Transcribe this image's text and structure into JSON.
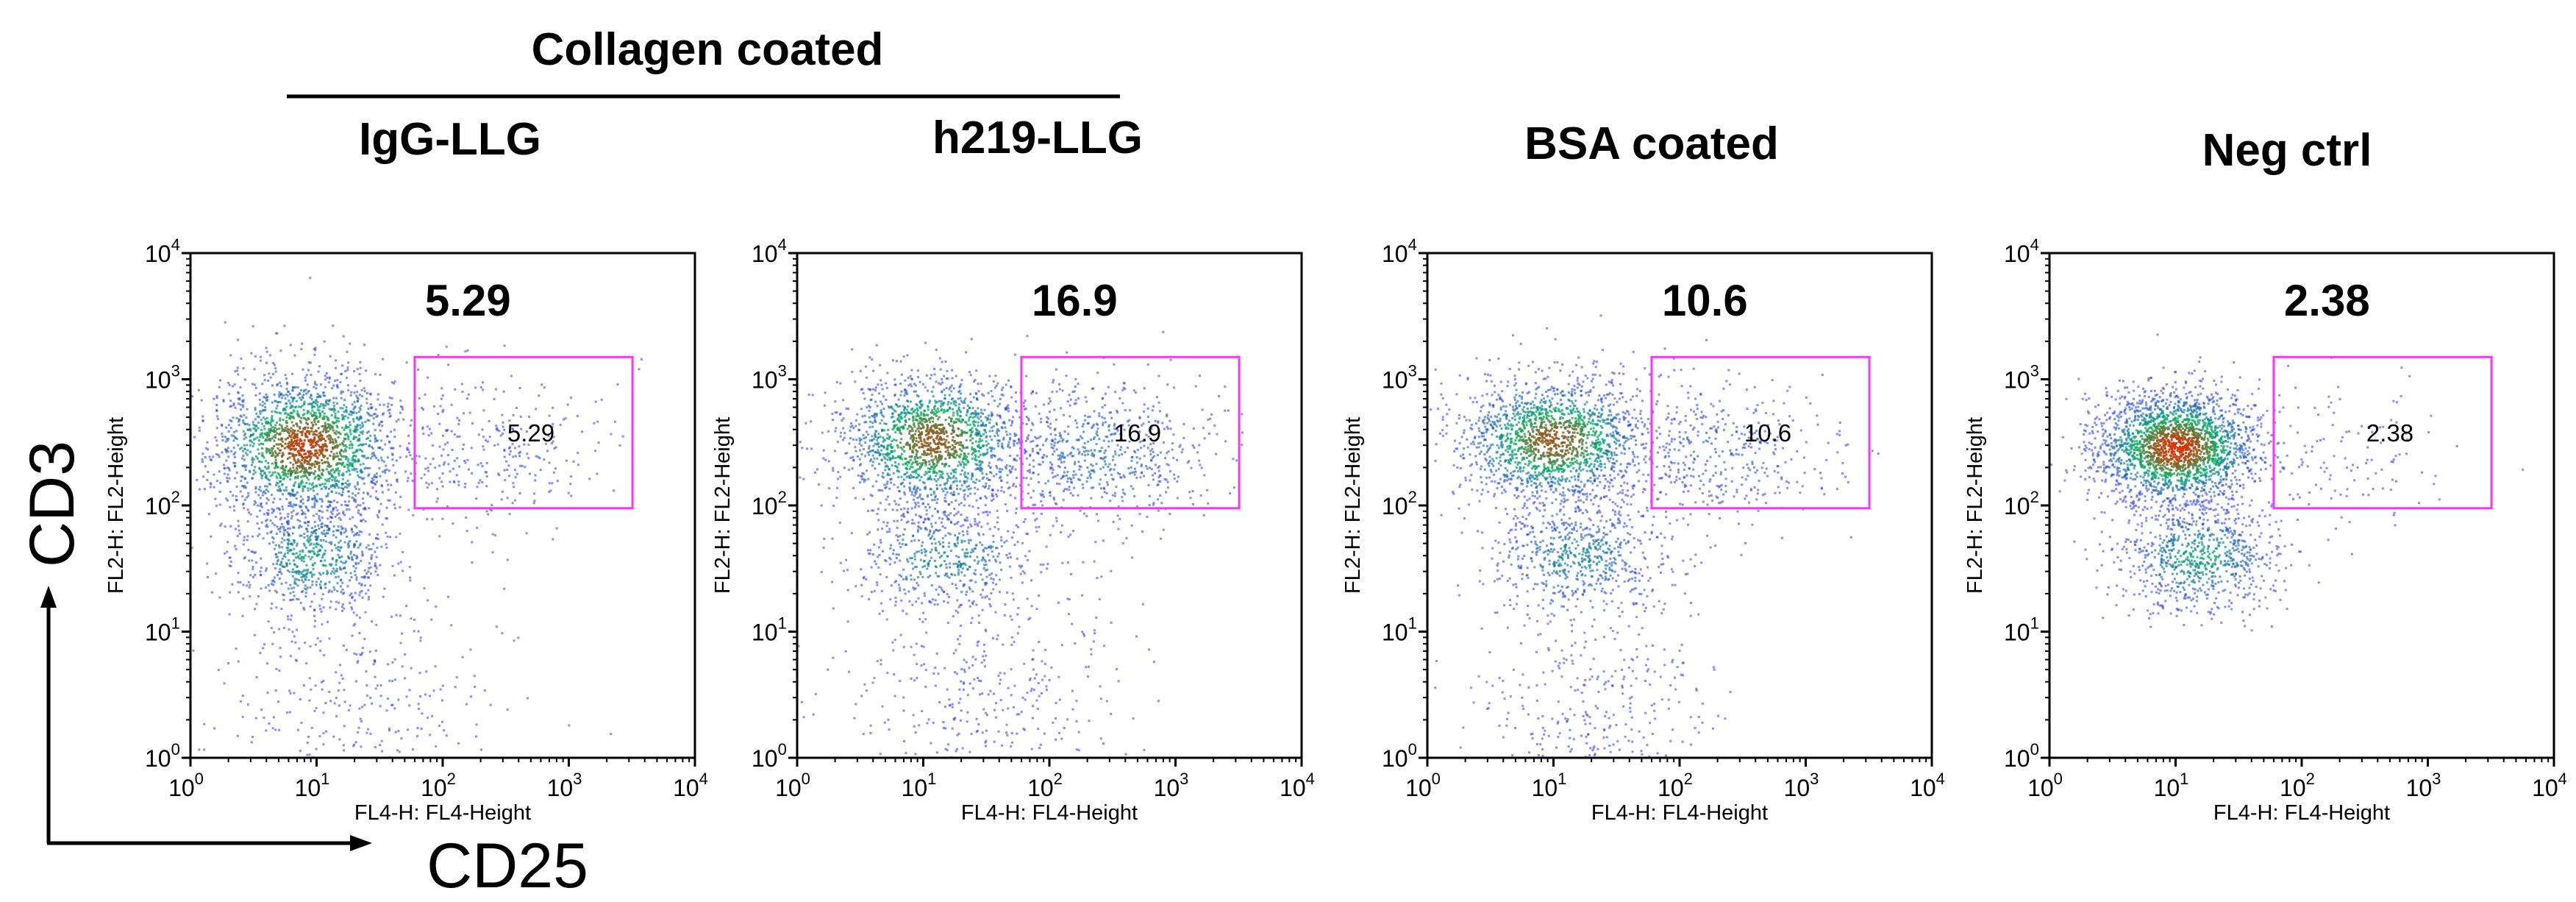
{
  "figure": {
    "group_label": "Collagen coated",
    "big_axis_y": "CD3",
    "big_axis_x": "CD25"
  },
  "colors": {
    "gate": "#ff33ff",
    "axis": "#000000",
    "density_low": "#2d2dff",
    "density_mid": "#00b060",
    "density_high": "#e03000"
  },
  "chart_data": [
    {
      "type": "scatter",
      "scale": "log",
      "title": "IgG-LLG",
      "headline_value": "5.29",
      "xlabel": "FL4-H: FL4-Height",
      "ylabel": "FL2-H: FL2-Height",
      "xlim": [
        1,
        10000
      ],
      "ylim": [
        1,
        10000
      ],
      "ticks": [
        {
          "base": "10",
          "exp": "0"
        },
        {
          "base": "10",
          "exp": "1"
        },
        {
          "base": "10",
          "exp": "2"
        },
        {
          "base": "10",
          "exp": "3"
        },
        {
          "base": "10",
          "exp": "4"
        }
      ],
      "gate": {
        "x": [
          60,
          3200
        ],
        "y": [
          95,
          1500
        ],
        "label": "5.29"
      },
      "populations": [
        {
          "cx": 8,
          "cy": 300,
          "sx": 0.3,
          "sy": 0.23,
          "n": 2000,
          "intensity": 0.95
        },
        {
          "cx": 9,
          "cy": 40,
          "sx": 0.25,
          "sy": 0.18,
          "n": 700,
          "intensity": 0.45
        },
        {
          "cx": 250,
          "cy": 250,
          "sx": 0.35,
          "sy": 0.25,
          "n": 280,
          "intensity": 0.1
        },
        {
          "cx": 20,
          "cy": 3,
          "sx": 0.45,
          "sy": 0.4,
          "n": 350,
          "intensity": 0.05
        }
      ]
    },
    {
      "type": "scatter",
      "scale": "log",
      "title": "h219-LLG",
      "headline_value": "16.9",
      "xlabel": "FL4-H: FL4-Height",
      "ylabel": "FL2-H: FL2-Height",
      "xlim": [
        1,
        10000
      ],
      "ylim": [
        1,
        10000
      ],
      "ticks": [
        {
          "base": "10",
          "exp": "0"
        },
        {
          "base": "10",
          "exp": "1"
        },
        {
          "base": "10",
          "exp": "2"
        },
        {
          "base": "10",
          "exp": "3"
        },
        {
          "base": "10",
          "exp": "4"
        }
      ],
      "gate": {
        "x": [
          60,
          3200
        ],
        "y": [
          95,
          1500
        ],
        "label": "16.9"
      },
      "populations": [
        {
          "cx": 12,
          "cy": 330,
          "sx": 0.3,
          "sy": 0.22,
          "n": 1700,
          "intensity": 0.85
        },
        {
          "cx": 15,
          "cy": 40,
          "sx": 0.3,
          "sy": 0.18,
          "n": 550,
          "intensity": 0.35
        },
        {
          "cx": 220,
          "cy": 260,
          "sx": 0.35,
          "sy": 0.22,
          "n": 650,
          "intensity": 0.25
        },
        {
          "cx": 30,
          "cy": 3,
          "sx": 0.45,
          "sy": 0.4,
          "n": 400,
          "intensity": 0.05
        }
      ]
    },
    {
      "type": "scatter",
      "scale": "log",
      "title": "BSA coated",
      "headline_value": "10.6",
      "xlabel": "FL4-H: FL4-Height",
      "ylabel": "FL2-H: FL2-Height",
      "xlim": [
        1,
        10000
      ],
      "ylim": [
        1,
        10000
      ],
      "ticks": [
        {
          "base": "10",
          "exp": "0"
        },
        {
          "base": "10",
          "exp": "1"
        },
        {
          "base": "10",
          "exp": "2"
        },
        {
          "base": "10",
          "exp": "3"
        },
        {
          "base": "10",
          "exp": "4"
        }
      ],
      "gate": {
        "x": [
          60,
          3200
        ],
        "y": [
          95,
          1500
        ],
        "label": "10.6"
      },
      "populations": [
        {
          "cx": 10,
          "cy": 330,
          "sx": 0.3,
          "sy": 0.2,
          "n": 1700,
          "intensity": 0.85
        },
        {
          "cx": 15,
          "cy": 40,
          "sx": 0.28,
          "sy": 0.18,
          "n": 650,
          "intensity": 0.35
        },
        {
          "cx": 200,
          "cy": 260,
          "sx": 0.35,
          "sy": 0.22,
          "n": 420,
          "intensity": 0.15
        },
        {
          "cx": 20,
          "cy": 2.5,
          "sx": 0.35,
          "sy": 0.35,
          "n": 350,
          "intensity": 0.05
        }
      ]
    },
    {
      "type": "scatter",
      "scale": "log",
      "title": "Neg ctrl",
      "headline_value": "2.38",
      "xlabel": "FL4-H: FL4-Height",
      "ylabel": "FL2-H: FL2-Height",
      "xlim": [
        1,
        10000
      ],
      "ylim": [
        1,
        10000
      ],
      "ticks": [
        {
          "base": "10",
          "exp": "0"
        },
        {
          "base": "10",
          "exp": "1"
        },
        {
          "base": "10",
          "exp": "2"
        },
        {
          "base": "10",
          "exp": "3"
        },
        {
          "base": "10",
          "exp": "4"
        }
      ],
      "gate": {
        "x": [
          60,
          3200
        ],
        "y": [
          95,
          1500
        ],
        "label": "2.38"
      },
      "populations": [
        {
          "cx": 10,
          "cy": 290,
          "sx": 0.26,
          "sy": 0.18,
          "n": 2300,
          "intensity": 1.0
        },
        {
          "cx": 15,
          "cy": 40,
          "sx": 0.25,
          "sy": 0.17,
          "n": 800,
          "intensity": 0.45
        },
        {
          "cx": 250,
          "cy": 250,
          "sx": 0.35,
          "sy": 0.25,
          "n": 120,
          "intensity": 0.05
        }
      ]
    }
  ]
}
